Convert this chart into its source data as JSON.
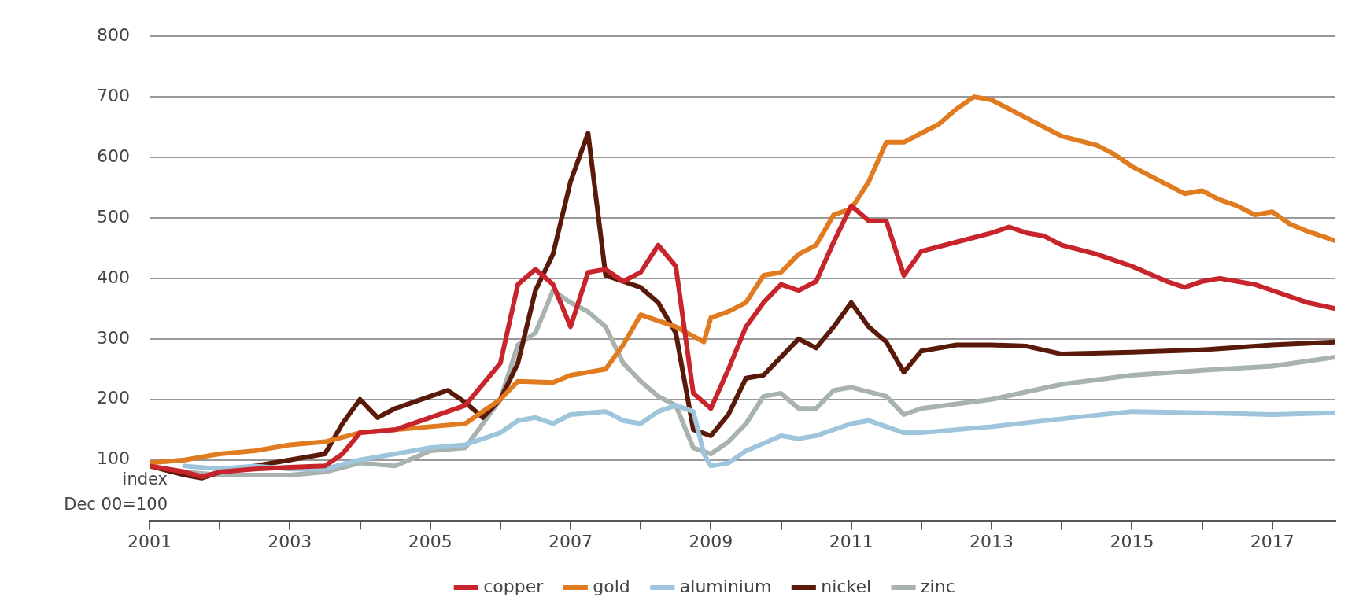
{
  "chart_data": {
    "type": "line",
    "ylabel": "index Dec 00=100",
    "ylim": [
      0,
      800
    ],
    "yticks": [
      100,
      200,
      300,
      400,
      500,
      600,
      700,
      800
    ],
    "xlim": [
      2001,
      2017.9
    ],
    "xticks": [
      2001,
      {
        "value": 2002,
        "label": null
      },
      2003,
      {
        "value": 2004,
        "label": null
      },
      2005,
      {
        "value": 2006,
        "label": null
      },
      2007,
      {
        "value": 2008,
        "label": null
      },
      2009,
      {
        "value": 2010,
        "label": null
      },
      2011,
      {
        "value": 2012,
        "label": null
      },
      2013,
      {
        "value": 2014,
        "label": null
      },
      2015,
      {
        "value": 2016,
        "label": null
      },
      2017
    ],
    "grid": "y",
    "legend": "bottom",
    "marker": "none",
    "line_style": "solid",
    "series": [
      {
        "name": "copper",
        "color": "#c8242b",
        "x": [
          2001,
          2001.5,
          2001.75,
          2002,
          2002.5,
          2003,
          2003.5,
          2003.75,
          2004,
          2004.5,
          2005,
          2005.5,
          2006,
          2006.25,
          2006.5,
          2006.75,
          2007,
          2007.25,
          2007.5,
          2007.75,
          2008,
          2008.25,
          2008.5,
          2008.75,
          2009,
          2009.25,
          2009.5,
          2009.75,
          2010,
          2010.25,
          2010.5,
          2010.75,
          2011,
          2011.25,
          2011.5,
          2011.75,
          2012,
          2012.5,
          2013,
          2013.25,
          2013.5,
          2013.75,
          2014,
          2014.5,
          2015,
          2015.5,
          2015.75,
          2016,
          2016.25,
          2016.75,
          2017,
          2017.5,
          2017.9
        ],
        "values": [
          90,
          80,
          72,
          80,
          85,
          88,
          90,
          110,
          145,
          150,
          170,
          190,
          260,
          390,
          415,
          390,
          320,
          410,
          415,
          395,
          410,
          455,
          420,
          210,
          185,
          250,
          320,
          360,
          390,
          380,
          395,
          460,
          520,
          495,
          495,
          405,
          445,
          460,
          475,
          485,
          475,
          470,
          455,
          440,
          420,
          395,
          385,
          395,
          400,
          390,
          380,
          360,
          350
        ]
      },
      {
        "name": "gold",
        "color": "#e07b1f",
        "x": [
          2001,
          2001.5,
          2002,
          2002.5,
          2003,
          2003.5,
          2004,
          2004.5,
          2005,
          2005.5,
          2006,
          2006.25,
          2006.75,
          2007,
          2007.5,
          2007.75,
          2008,
          2008.5,
          2008.9,
          2009,
          2009.25,
          2009.5,
          2009.75,
          2010,
          2010.25,
          2010.5,
          2010.75,
          2011,
          2011.25,
          2011.5,
          2011.75,
          2012,
          2012.25,
          2012.5,
          2012.75,
          2013,
          2013.5,
          2014,
          2014.5,
          2014.75,
          2015,
          2015.5,
          2015.75,
          2016,
          2016.25,
          2016.5,
          2016.75,
          2017,
          2017.25,
          2017.5,
          2017.9
        ],
        "values": [
          95,
          100,
          110,
          115,
          125,
          130,
          145,
          150,
          155,
          160,
          200,
          230,
          228,
          240,
          250,
          290,
          340,
          320,
          295,
          335,
          345,
          360,
          405,
          410,
          440,
          455,
          505,
          515,
          560,
          625,
          625,
          640,
          655,
          680,
          700,
          695,
          665,
          635,
          620,
          605,
          585,
          555,
          540,
          545,
          530,
          520,
          505,
          510,
          490,
          478,
          462
        ]
      },
      {
        "name": "aluminium",
        "color": "#9ec5dc",
        "x": [
          2001.5,
          2002,
          2002.5,
          2003,
          2003.5,
          2004,
          2004.5,
          2005,
          2005.5,
          2006,
          2006.25,
          2006.5,
          2006.75,
          2007,
          2007.5,
          2007.75,
          2008,
          2008.25,
          2008.5,
          2008.75,
          2008.9,
          2009,
          2009.25,
          2009.5,
          2010,
          2010.25,
          2010.5,
          2011,
          2011.25,
          2011.75,
          2012,
          2013,
          2014,
          2015,
          2016,
          2017,
          2017.9
        ],
        "values": [
          90,
          85,
          90,
          85,
          85,
          100,
          110,
          120,
          125,
          145,
          165,
          170,
          160,
          175,
          180,
          165,
          160,
          180,
          190,
          180,
          110,
          90,
          95,
          115,
          140,
          135,
          140,
          160,
          165,
          145,
          145,
          155,
          168,
          180,
          178,
          175,
          178
        ]
      },
      {
        "name": "nickel",
        "color": "#5a1a0a",
        "x": [
          2001,
          2001.5,
          2001.75,
          2002,
          2002.5,
          2003,
          2003.5,
          2003.75,
          2004,
          2004.25,
          2004.5,
          2005,
          2005.25,
          2005.5,
          2005.75,
          2006,
          2006.25,
          2006.5,
          2006.75,
          2007,
          2007.25,
          2007.5,
          2007.75,
          2008,
          2008.25,
          2008.5,
          2008.75,
          2009,
          2009.25,
          2009.5,
          2009.75,
          2010,
          2010.25,
          2010.5,
          2010.75,
          2011,
          2011.25,
          2011.5,
          2011.75,
          2012,
          2012.5,
          2013,
          2013.5,
          2014,
          2015,
          2016,
          2017,
          2017.9
        ],
        "values": [
          90,
          75,
          70,
          80,
          90,
          100,
          110,
          160,
          200,
          170,
          185,
          205,
          215,
          195,
          170,
          200,
          260,
          380,
          440,
          560,
          640,
          405,
          395,
          385,
          360,
          310,
          150,
          140,
          175,
          235,
          240,
          270,
          300,
          285,
          320,
          360,
          320,
          295,
          245,
          280,
          290,
          290,
          288,
          275,
          278,
          282,
          290,
          295
        ]
      },
      {
        "name": "zinc",
        "color": "#a9b3ad",
        "x": [
          2001,
          2001.5,
          2002,
          2002.5,
          2003,
          2003.5,
          2004,
          2004.5,
          2005,
          2005.5,
          2006,
          2006.25,
          2006.5,
          2006.75,
          2007,
          2007.25,
          2007.5,
          2007.75,
          2008,
          2008.25,
          2008.5,
          2008.75,
          2009,
          2009.25,
          2009.5,
          2009.75,
          2010,
          2010.25,
          2010.5,
          2010.75,
          2011,
          2011.5,
          2011.75,
          2012,
          2013,
          2014,
          2015,
          2016,
          2017,
          2017.9
        ],
        "values": [
          90,
          80,
          75,
          75,
          75,
          80,
          95,
          90,
          115,
          120,
          200,
          290,
          310,
          380,
          360,
          345,
          320,
          260,
          230,
          205,
          190,
          120,
          110,
          130,
          160,
          205,
          210,
          185,
          185,
          215,
          220,
          205,
          175,
          185,
          200,
          225,
          240,
          248,
          255,
          270
        ]
      }
    ]
  }
}
